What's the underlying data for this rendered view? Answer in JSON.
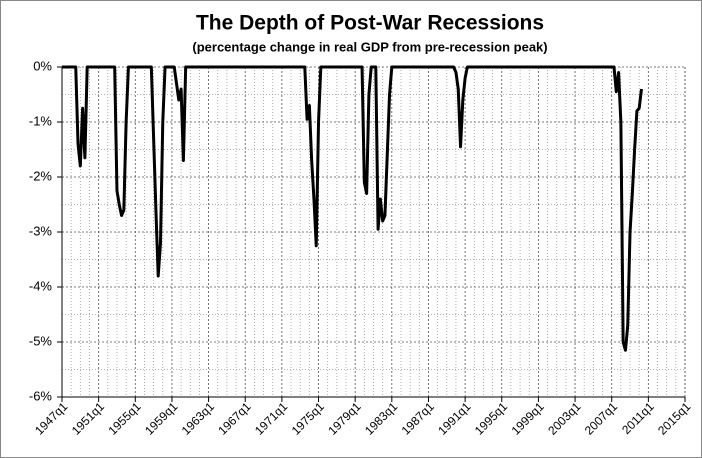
{
  "chart_data": {
    "type": "line",
    "title": "The Depth of Post-War Recessions",
    "subtitle": "(percentage change in real GDP from pre-recession peak)",
    "categories": [
      "1947q1",
      null,
      null,
      null,
      null,
      null,
      null,
      null,
      null,
      null,
      null,
      null,
      null,
      null,
      null,
      null,
      "1951q1",
      null,
      null,
      null,
      null,
      null,
      null,
      null,
      null,
      null,
      null,
      null,
      null,
      null,
      null,
      null,
      "1955q1",
      null,
      null,
      null,
      null,
      null,
      null,
      null,
      null,
      null,
      null,
      null,
      null,
      null,
      null,
      null,
      "1959q1",
      null,
      null,
      null,
      null,
      null,
      null,
      null,
      null,
      null,
      null,
      null,
      null,
      null,
      null,
      null,
      "1963q1",
      null,
      null,
      null,
      null,
      null,
      null,
      null,
      null,
      null,
      null,
      null,
      null,
      null,
      null,
      null,
      "1967q1",
      null,
      null,
      null,
      null,
      null,
      null,
      null,
      null,
      null,
      null,
      null,
      null,
      null,
      null,
      null,
      "1971q1",
      null,
      null,
      null,
      null,
      null,
      null,
      null,
      null,
      null,
      null,
      null,
      null,
      null,
      null,
      null,
      "1975q1",
      null,
      null,
      null,
      null,
      null,
      null,
      null,
      null,
      null,
      null,
      null,
      null,
      null,
      null,
      null,
      "1979q1",
      null,
      null,
      null,
      null,
      null,
      null,
      null,
      null,
      null,
      null,
      null,
      null,
      null,
      null,
      null,
      "1983q1",
      null,
      null,
      null,
      null,
      null,
      null,
      null,
      null,
      null,
      null,
      null,
      null,
      null,
      null,
      null,
      "1987q1",
      null,
      null,
      null,
      null,
      null,
      null,
      null,
      null,
      null,
      null,
      null,
      null,
      null,
      null,
      null,
      "1991q1",
      null,
      null,
      null,
      null,
      null,
      null,
      null,
      null,
      null,
      null,
      null,
      null,
      null,
      null,
      null,
      "1995q1",
      null,
      null,
      null,
      null,
      null,
      null,
      null,
      null,
      null,
      null,
      null,
      null,
      null,
      null,
      null,
      "1999q1",
      null,
      null,
      null,
      null,
      null,
      null,
      null,
      null,
      null,
      null,
      null,
      null,
      null,
      null,
      null,
      "2003q1",
      null,
      null,
      null,
      null,
      null,
      null,
      null,
      null,
      null,
      null,
      null,
      null,
      null,
      null,
      null,
      "2007q1",
      null,
      null,
      null,
      null,
      null,
      null,
      null,
      null,
      null,
      null,
      null,
      null,
      null,
      null,
      null,
      "2011q1",
      null,
      null,
      null,
      null,
      null,
      null,
      null,
      null,
      null,
      null,
      null,
      null,
      null,
      null,
      null,
      "2015q1"
    ],
    "values": [
      0,
      0,
      0,
      0,
      0,
      0,
      0,
      -1.4,
      -1.8,
      -0.75,
      -1.65,
      0,
      0,
      0,
      0,
      0,
      0,
      0,
      0,
      0,
      0,
      0,
      0,
      0,
      -2.25,
      -2.5,
      -2.7,
      -2.6,
      -1,
      0,
      0,
      0,
      0,
      0,
      0,
      0,
      0,
      0,
      0,
      0,
      -1.3,
      -2.6,
      -3.8,
      -3.2,
      -1,
      0,
      0,
      0,
      0,
      0,
      -0.3,
      -0.6,
      -0.4,
      -1.7,
      0,
      0,
      0,
      0,
      0,
      0,
      0,
      0,
      0,
      0,
      0,
      0,
      0,
      0,
      0,
      0,
      0,
      0,
      0,
      0,
      0,
      0,
      0,
      0,
      0,
      0,
      0,
      0,
      0,
      0,
      0,
      0,
      0,
      0,
      0,
      0,
      0,
      0,
      0,
      0,
      0,
      0,
      0,
      0,
      0,
      0,
      0,
      0,
      0,
      0,
      0,
      0,
      0,
      -0.95,
      -0.7,
      -1.7,
      -2.4,
      -3.25,
      -1,
      0,
      0,
      0,
      0,
      0,
      0,
      0,
      0,
      0,
      0,
      0,
      0,
      0,
      0,
      0,
      0,
      0,
      0,
      0,
      -2.1,
      -2.3,
      -0.5,
      0,
      0,
      0,
      -2.95,
      -2.4,
      -2.8,
      -2.7,
      -1.6,
      -0.5,
      0,
      0,
      0,
      0,
      0,
      0,
      0,
      0,
      0,
      0,
      0,
      0,
      0,
      0,
      0,
      0,
      0,
      0,
      0,
      0,
      0,
      0,
      0,
      0,
      0,
      0,
      0,
      0,
      -0.1,
      -0.4,
      -1.45,
      -0.6,
      -0.2,
      0,
      0,
      0,
      0,
      0,
      0,
      0,
      0,
      0,
      0,
      0,
      0,
      0,
      0,
      0,
      0,
      0,
      0,
      0,
      0,
      0,
      0,
      0,
      0,
      0,
      0,
      0,
      0,
      0,
      0,
      0,
      0,
      0,
      0,
      0,
      0,
      0,
      0,
      0,
      0,
      0,
      0,
      0,
      0,
      0,
      0,
      0,
      0,
      0,
      0,
      0,
      0,
      0,
      0,
      0,
      0,
      0,
      0,
      0,
      0,
      0,
      0,
      0,
      0,
      0,
      -0.45,
      -0.1,
      -1,
      -5,
      -5.15,
      -4.7,
      -3,
      -2.3,
      -1.5,
      -0.8,
      -0.75,
      -0.4,
      null,
      null,
      null,
      null,
      null,
      null,
      null,
      null,
      null,
      null,
      null,
      null,
      null,
      null,
      null,
      null,
      null,
      null,
      null
    ],
    "color": "#000000",
    "ylim": [
      -6,
      0
    ],
    "yticks": [
      {
        "value": -6,
        "label": "-6%"
      },
      {
        "value": -5,
        "label": "-5%"
      },
      {
        "value": -4,
        "label": "-4%"
      },
      {
        "value": -3,
        "label": "-3%"
      },
      {
        "value": -2,
        "label": "-2%"
      },
      {
        "value": -1,
        "label": "-1%"
      },
      {
        "value": 0,
        "label": "0%"
      }
    ],
    "grid": true
  }
}
